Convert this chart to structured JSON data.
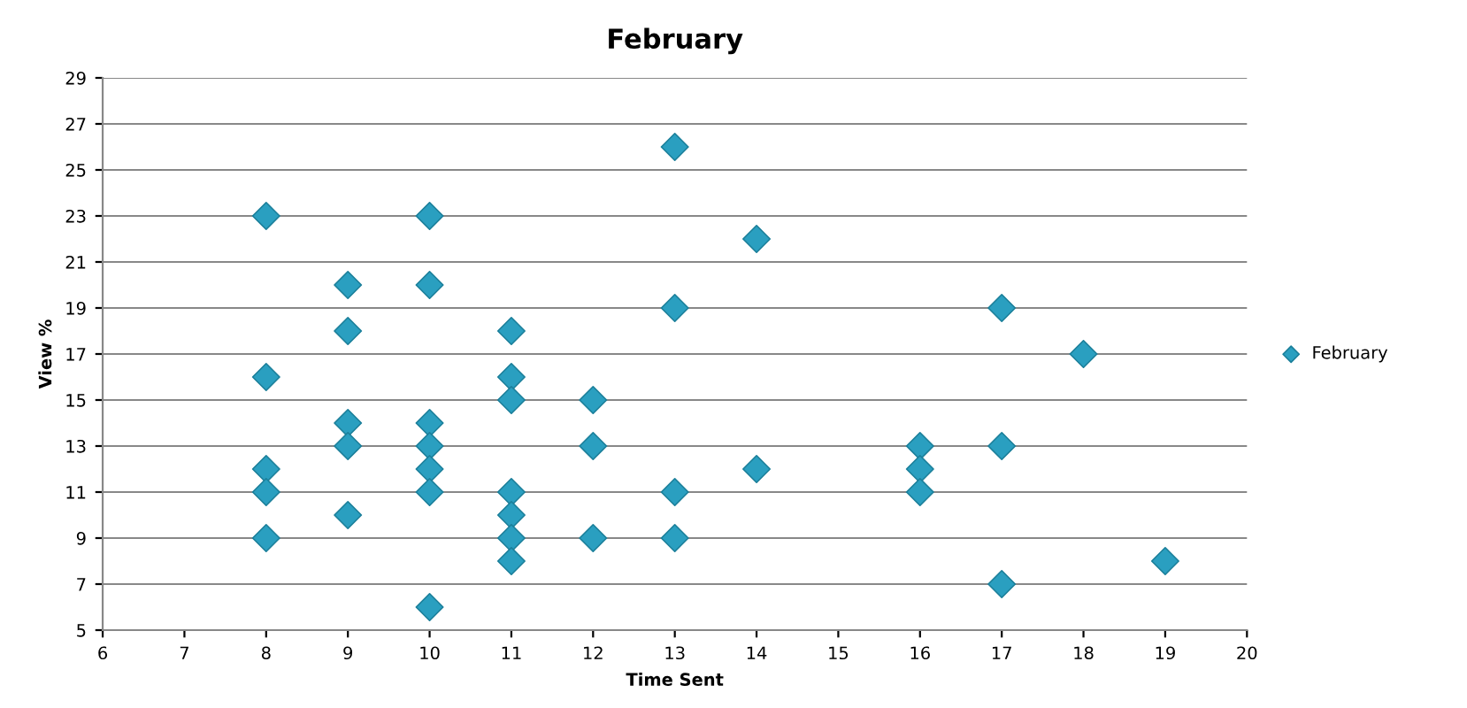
{
  "chart_data": {
    "type": "scatter",
    "title": "February",
    "xlabel": "Time Sent",
    "ylabel": "View %",
    "x": [
      8,
      8,
      8,
      8,
      8,
      9,
      9,
      9,
      9,
      9,
      10,
      10,
      10,
      10,
      10,
      10,
      10,
      11,
      11,
      11,
      11,
      11,
      11,
      11,
      12,
      12,
      12,
      13,
      13,
      13,
      13,
      14,
      14,
      16,
      16,
      16,
      17,
      17,
      17,
      18,
      19
    ],
    "series": [
      {
        "name": "February",
        "color": "#2a9fc0",
        "values": [
          23,
          16,
          12,
          11,
          9,
          20,
          18,
          14,
          13,
          10,
          23,
          20,
          14,
          13,
          12,
          11,
          6,
          18,
          16,
          15,
          11,
          10,
          9,
          8,
          15,
          13,
          9,
          26,
          19,
          11,
          9,
          22,
          12,
          13,
          12,
          11,
          19,
          13,
          7,
          17,
          8
        ]
      }
    ],
    "xlim": [
      6,
      20
    ],
    "xticks": [
      6,
      7,
      8,
      9,
      10,
      11,
      12,
      13,
      14,
      15,
      16,
      17,
      18,
      19,
      20
    ],
    "ylim": [
      5,
      29
    ],
    "yticks": [
      5,
      7,
      9,
      11,
      13,
      15,
      17,
      19,
      21,
      23,
      25,
      27,
      29
    ],
    "grid": "y",
    "legend": "right",
    "marker": "diamond"
  }
}
